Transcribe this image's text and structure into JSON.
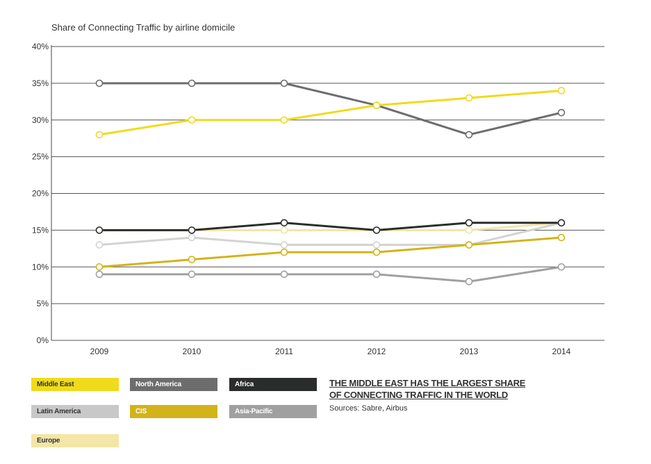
{
  "chart_data": {
    "type": "line",
    "title": "Share of Connecting Traffic by airline domicile",
    "categories": [
      "2009",
      "2010",
      "2011",
      "2012",
      "2013",
      "2014"
    ],
    "ylim": [
      0,
      40
    ],
    "yticks": [
      "0%",
      "5%",
      "10%",
      "15%",
      "20%",
      "25%",
      "30%",
      "35%",
      "40%"
    ],
    "ytick_values": [
      0,
      5,
      10,
      15,
      20,
      25,
      30,
      35,
      40
    ],
    "grid": true,
    "series": [
      {
        "name": "North America",
        "color": "#6d6d6d",
        "values": [
          35,
          35,
          35,
          32,
          28,
          31
        ]
      },
      {
        "name": "Europe",
        "color": "#f3e6a6",
        "values": [
          15,
          15,
          15,
          15,
          15,
          16
        ]
      },
      {
        "name": "Latin America",
        "color": "#d3d3d3",
        "values": [
          13,
          14,
          13,
          13,
          13,
          16
        ]
      },
      {
        "name": "Asia-Pacific",
        "color": "#a0a0a0",
        "values": [
          9,
          9,
          9,
          9,
          8,
          10
        ]
      },
      {
        "name": "CIS",
        "color": "#d3b31a",
        "values": [
          10,
          11,
          12,
          12,
          13,
          14
        ]
      },
      {
        "name": "Africa",
        "color": "#2b2d2d",
        "values": [
          15,
          15,
          16,
          15,
          16,
          16
        ]
      },
      {
        "name": "Middle East",
        "color": "#f0db1b",
        "values": [
          28,
          30,
          30,
          32,
          33,
          34
        ]
      }
    ]
  },
  "legend": [
    {
      "label": "Middle East",
      "color": "#f0db1b",
      "text_color": "#333333"
    },
    {
      "label": "North America",
      "color": "#6d6d6d",
      "text_color": "#ffffff"
    },
    {
      "label": "Africa",
      "color": "#2b2d2d",
      "text_color": "#ffffff"
    },
    {
      "label": "Latin America",
      "color": "#c8c8c8",
      "text_color": "#333333"
    },
    {
      "label": "CIS",
      "color": "#d3b31a",
      "text_color": "#ffffff"
    },
    {
      "label": "Asia-Pacific",
      "color": "#a0a0a0",
      "text_color": "#ffffff"
    },
    {
      "label": "Europe",
      "color": "#f3e6a6",
      "text_color": "#333333"
    }
  ],
  "headline": "THE MIDDLE EAST HAS THE LARGEST SHARE OF CONNECTING TRAFFIC IN THE WORLD",
  "sources": "Sources: Sabre, Airbus"
}
